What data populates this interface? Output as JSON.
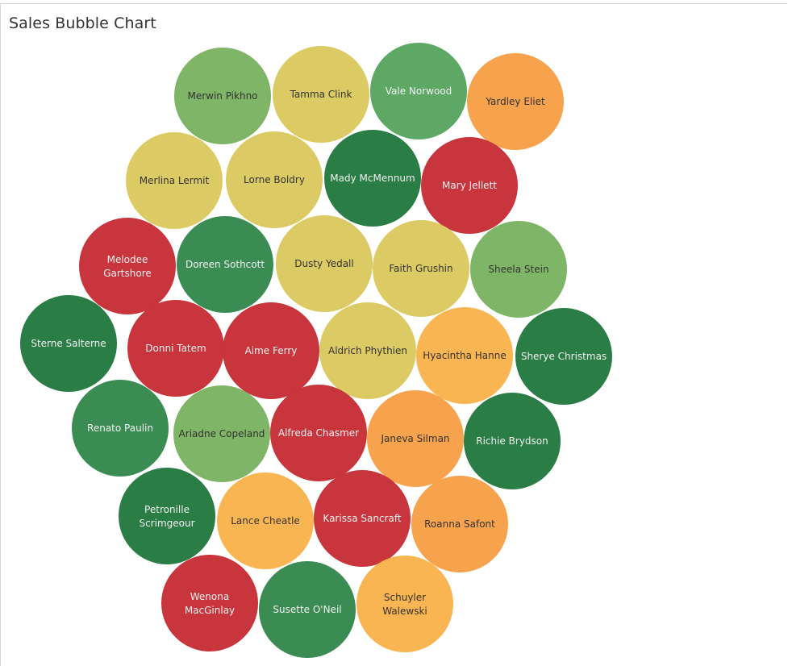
{
  "title": "Sales Bubble Chart",
  "colors": {
    "dark_green": "#2a7d45",
    "green": "#3a8c53",
    "mid_green": "#5ea866",
    "light_green": "#7fb566",
    "yellow": "#dccb65",
    "light_orange": "#f9b552",
    "orange": "#f7a34d",
    "red": "#c8353c",
    "light_text": "#f1f1f1",
    "dark_text": "#333333"
  },
  "chart_data": {
    "type": "bubble",
    "title": "Sales Bubble Chart",
    "bubbles": [
      {
        "name": "Merwin Pikhno",
        "color": "light_green"
      },
      {
        "name": "Tamma Clink",
        "color": "yellow"
      },
      {
        "name": "Vale Norwood",
        "color": "mid_green"
      },
      {
        "name": "Yardley Eliet",
        "color": "orange"
      },
      {
        "name": "Merlina Lermit",
        "color": "yellow"
      },
      {
        "name": "Lorne Boldry",
        "color": "yellow"
      },
      {
        "name": "Mady McMennum",
        "color": "dark_green"
      },
      {
        "name": "Mary Jellett",
        "color": "red"
      },
      {
        "name": "Melodee Gartshore",
        "color": "red"
      },
      {
        "name": "Doreen Sothcott",
        "color": "green"
      },
      {
        "name": "Dusty Yedall",
        "color": "yellow"
      },
      {
        "name": "Faith Grushin",
        "color": "yellow"
      },
      {
        "name": "Sheela Stein",
        "color": "light_green"
      },
      {
        "name": "Sterne Salterne",
        "color": "dark_green"
      },
      {
        "name": "Donni Tatem",
        "color": "red"
      },
      {
        "name": "Aime Ferry",
        "color": "red"
      },
      {
        "name": "Aldrich Phythien",
        "color": "yellow"
      },
      {
        "name": "Hyacintha Hanne",
        "color": "light_orange"
      },
      {
        "name": "Sherye Christmas",
        "color": "dark_green"
      },
      {
        "name": "Renato Paulin",
        "color": "green"
      },
      {
        "name": "Ariadne Copeland",
        "color": "light_green"
      },
      {
        "name": "Alfreda Chasmer",
        "color": "red"
      },
      {
        "name": "Janeva Silman",
        "color": "orange"
      },
      {
        "name": "Richie Brydson",
        "color": "dark_green"
      },
      {
        "name": "Petronille Scrimgeour",
        "color": "dark_green"
      },
      {
        "name": "Lance Cheatle",
        "color": "light_orange"
      },
      {
        "name": "Karissa Sancraft",
        "color": "red"
      },
      {
        "name": "Roanna Safont",
        "color": "orange"
      },
      {
        "name": "Wenona MacGinlay",
        "color": "red"
      },
      {
        "name": "Susette O'Neil",
        "color": "green"
      },
      {
        "name": "Schuyler Walewski",
        "color": "light_orange"
      }
    ]
  }
}
